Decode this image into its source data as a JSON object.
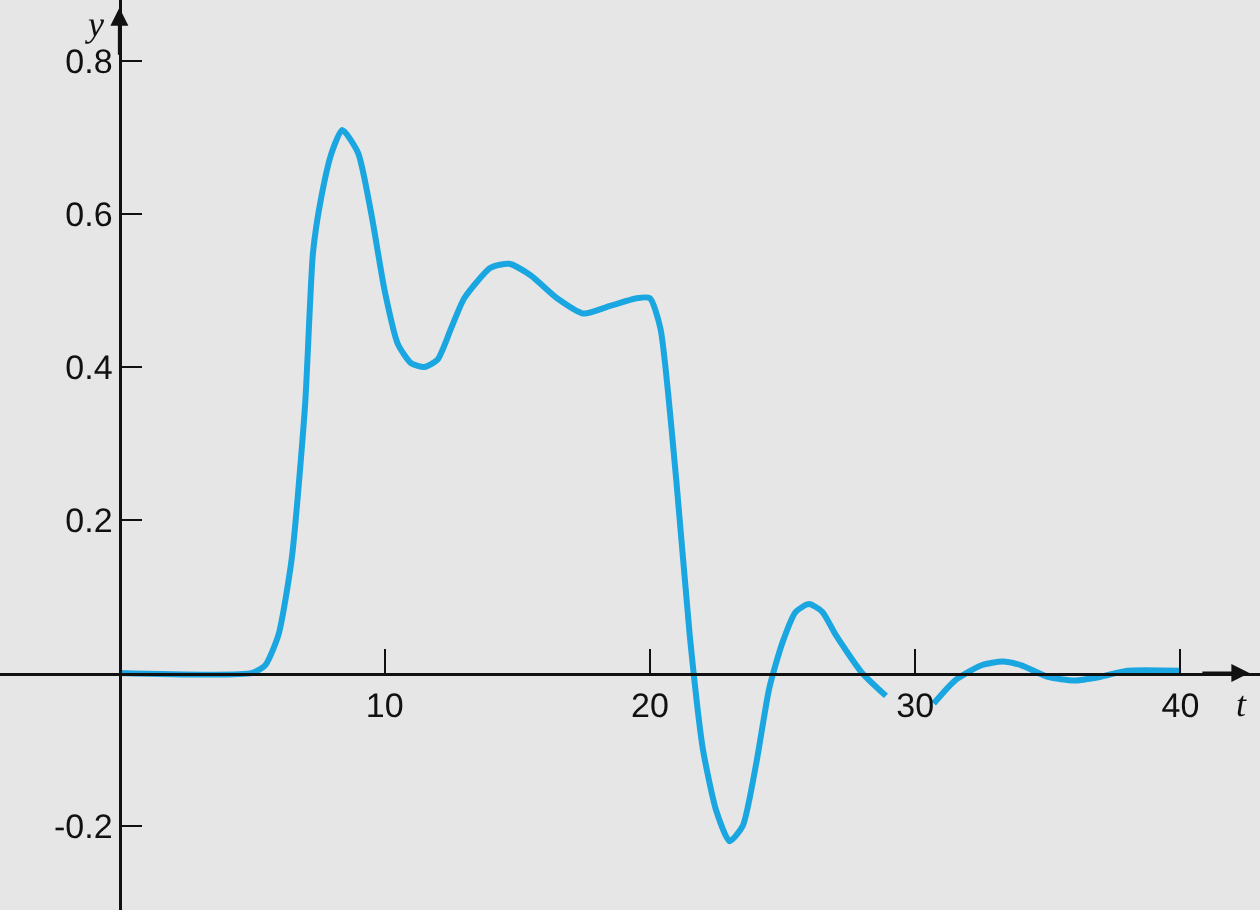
{
  "chart_data": {
    "type": "line",
    "xlabel": "t",
    "ylabel": "y",
    "x": [
      0,
      5,
      5.5,
      6,
      6.5,
      7,
      7.3,
      7.6,
      8,
      8.4,
      9,
      9.5,
      10,
      10.5,
      11,
      11.5,
      12,
      12.5,
      13,
      14,
      14.7,
      15.5,
      16.5,
      17.5,
      18.5,
      19.5,
      20,
      20.4,
      21,
      21.5,
      22,
      22.5,
      23,
      23.5,
      24,
      24.5,
      25,
      25.5,
      26,
      26.5,
      27,
      28,
      28.9,
      29.8,
      30.7,
      31.5,
      32.5,
      33.3,
      34,
      35,
      36,
      37,
      38,
      40
    ],
    "series": [
      {
        "color": "#1aa6e0",
        "values": [
          0,
          0,
          0.01,
          0.05,
          0.15,
          0.35,
          0.55,
          0.62,
          0.68,
          0.71,
          0.68,
          0.6,
          0.5,
          0.43,
          0.405,
          0.4,
          0.41,
          0.45,
          0.49,
          0.53,
          0.535,
          0.52,
          0.49,
          0.47,
          0.48,
          0.49,
          0.49,
          0.45,
          0.25,
          0.05,
          -0.1,
          -0.18,
          -0.22,
          -0.2,
          -0.12,
          -0.02,
          0.04,
          0.08,
          0.09,
          0.08,
          0.05,
          0,
          -0.03,
          null,
          -0.04,
          -0.01,
          0.01,
          0.015,
          0.01,
          -0.005,
          -0.01,
          -0.005,
          0.003,
          0.003
        ]
      }
    ],
    "xlim": [
      -4.5,
      43
    ],
    "ylim": [
      -0.31,
      0.88
    ],
    "xticks": [
      10,
      20,
      30,
      40
    ],
    "yticks": [
      -0.2,
      0.2,
      0.4,
      0.6,
      0.8
    ],
    "grid": false,
    "legend": false,
    "marker": "none",
    "line_style": "solid"
  }
}
